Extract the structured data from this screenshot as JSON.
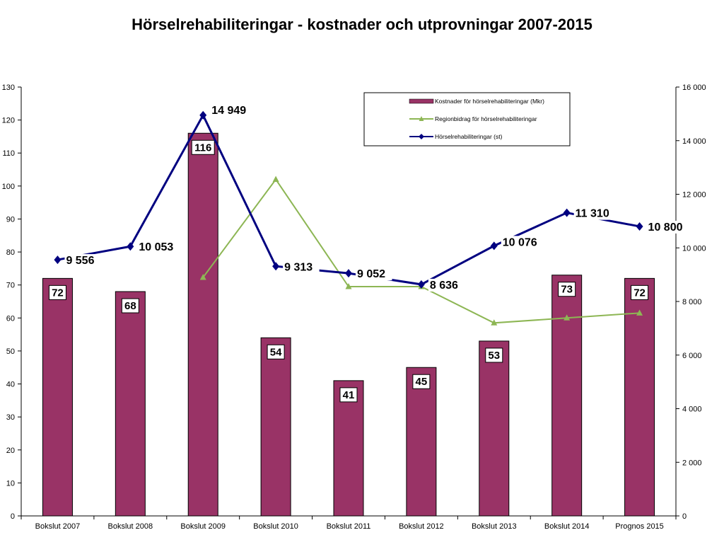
{
  "chart_data": {
    "type": "bar",
    "title": "Hörselrehabiliteringar - kostnader och utprovningar 2007-2015",
    "categories": [
      "Bokslut 2007",
      "Bokslut 2008",
      "Bokslut 2009",
      "Bokslut 2010",
      "Bokslut 2011",
      "Bokslut 2012",
      "Bokslut 2013",
      "Bokslut 2014",
      "Prognos 2015"
    ],
    "left_axis": {
      "ylim": [
        0,
        130
      ],
      "ticks": [
        "0",
        "10",
        "20",
        "30",
        "40",
        "50",
        "60",
        "70",
        "80",
        "90",
        "100",
        "110",
        "120",
        "130"
      ]
    },
    "right_axis": {
      "ylim": [
        0,
        16000
      ],
      "ticks": [
        "0",
        "2 000",
        "4 000",
        "6 000",
        "8 000",
        "10 000",
        "12 000",
        "14 000",
        "16 000"
      ]
    },
    "legend_position": "top-right",
    "series": [
      {
        "name": "Kostnader för hörselrehabiliteringar (Mkr)",
        "type": "bar",
        "axis": "left",
        "color": "#993366",
        "values": [
          72,
          68,
          116,
          54,
          41,
          45,
          53,
          73,
          72
        ],
        "labels": [
          "72",
          "68",
          "116",
          "54",
          "41",
          "45",
          "53",
          "73",
          "72"
        ]
      },
      {
        "name": "Regionbidrag för hörselrehabiliteringar",
        "type": "line",
        "axis": "left",
        "color": "#8DB654",
        "marker": "triangle",
        "values": [
          null,
          null,
          72.3,
          102,
          69.5,
          69.5,
          58.5,
          60,
          61.5
        ]
      },
      {
        "name": "Hörselrehabiliteringar (st)",
        "type": "line",
        "axis": "right",
        "color": "#000080",
        "marker": "diamond",
        "values": [
          9556,
          10053,
          14949,
          9313,
          9052,
          8636,
          10076,
          11310,
          10800
        ],
        "labels": [
          "9 556",
          "10 053",
          "14 949",
          "9 313",
          "9 052",
          "8 636",
          "10 076",
          "11 310",
          "10 800"
        ]
      }
    ]
  }
}
